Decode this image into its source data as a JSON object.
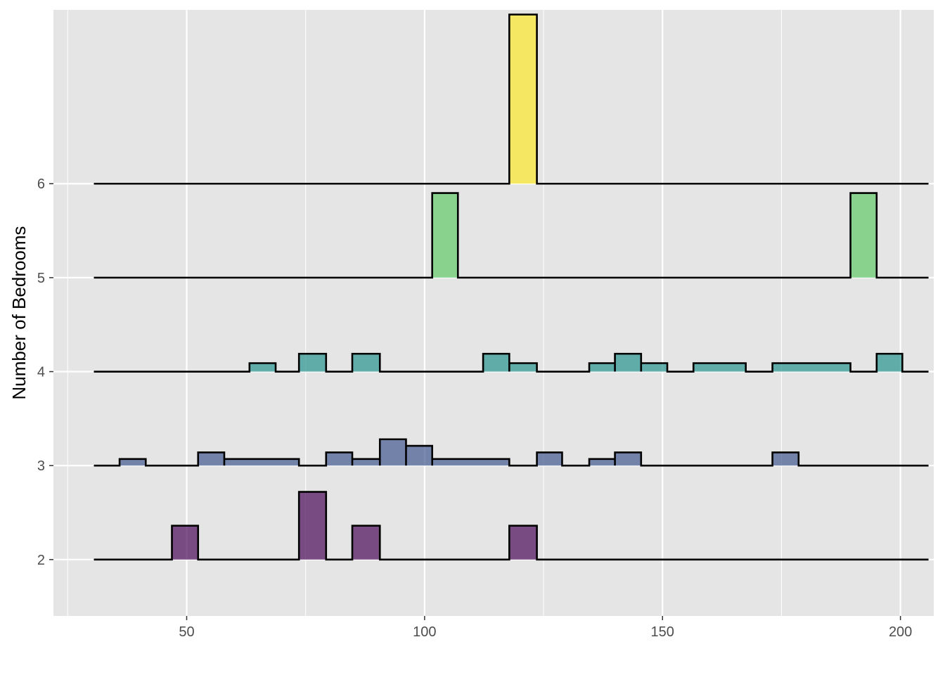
{
  "chart_data": {
    "type": "ridgeline-histogram",
    "title": "",
    "xlabel": "",
    "ylabel": "Number of Bedrooms",
    "xlim": [
      22,
      207
    ],
    "ylim": [
      1.4,
      7.85
    ],
    "x_ticks": [
      50,
      100,
      150,
      200
    ],
    "x_tick_labels": [
      "50",
      "100",
      "150",
      "200"
    ],
    "y_ticks": [
      2,
      3,
      4,
      5,
      6
    ],
    "y_tick_labels": [
      "2",
      "3",
      "4",
      "5",
      "6"
    ],
    "x_range": [
      30.5,
      205.9
    ],
    "bin_width": 5.48,
    "grid": true,
    "background": "#e5e5e5",
    "grid_color": "#ffffff",
    "outline_color": "#000000",
    "series": [
      {
        "baseline": 2,
        "color": "#440154",
        "bins": [
          {
            "x": [
              46.9,
              52.4
            ],
            "height": 0.36
          },
          {
            "x": [
              73.6,
              79.3
            ],
            "height": 0.72
          },
          {
            "x": [
              84.8,
              90.6
            ],
            "height": 0.36
          },
          {
            "x": [
              117.8,
              123.6
            ],
            "height": 0.36
          }
        ]
      },
      {
        "baseline": 3,
        "color": "#3b528b",
        "bins": [
          {
            "x": [
              35.9,
              41.4
            ],
            "height": 0.07
          },
          {
            "x": [
              52.4,
              57.9
            ],
            "height": 0.14
          },
          {
            "x": [
              57.9,
              73.6
            ],
            "height": 0.07
          },
          {
            "x": [
              79.3,
              84.8
            ],
            "height": 0.14
          },
          {
            "x": [
              84.8,
              90.6
            ],
            "height": 0.07
          },
          {
            "x": [
              90.6,
              96.1
            ],
            "height": 0.28
          },
          {
            "x": [
              96.1,
              101.6
            ],
            "height": 0.21
          },
          {
            "x": [
              101.6,
              117.8
            ],
            "height": 0.07
          },
          {
            "x": [
              123.6,
              128.9
            ],
            "height": 0.14
          },
          {
            "x": [
              134.6,
              140.0
            ],
            "height": 0.07
          },
          {
            "x": [
              140.0,
              145.5
            ],
            "height": 0.14
          },
          {
            "x": [
              173.1,
              178.6
            ],
            "height": 0.14
          }
        ]
      },
      {
        "baseline": 4,
        "color": "#21908c",
        "bins": [
          {
            "x": [
              63.2,
              68.7
            ],
            "height": 0.09
          },
          {
            "x": [
              73.6,
              79.3
            ],
            "height": 0.19
          },
          {
            "x": [
              84.8,
              90.6
            ],
            "height": 0.19
          },
          {
            "x": [
              112.3,
              117.8
            ],
            "height": 0.19
          },
          {
            "x": [
              117.8,
              123.6
            ],
            "height": 0.09
          },
          {
            "x": [
              134.6,
              140.0
            ],
            "height": 0.09
          },
          {
            "x": [
              140.0,
              145.5
            ],
            "height": 0.19
          },
          {
            "x": [
              145.5,
              151.0
            ],
            "height": 0.09
          },
          {
            "x": [
              156.5,
              167.5
            ],
            "height": 0.09
          },
          {
            "x": [
              173.1,
              189.5
            ],
            "height": 0.09
          },
          {
            "x": [
              195.0,
              200.4
            ],
            "height": 0.19
          }
        ]
      },
      {
        "baseline": 5,
        "color": "#5dc863",
        "bins": [
          {
            "x": [
              101.6,
              107.0
            ],
            "height": 0.9
          },
          {
            "x": [
              189.5,
              195.0
            ],
            "height": 0.9
          }
        ]
      },
      {
        "baseline": 6,
        "color": "#fde725",
        "bins": [
          {
            "x": [
              117.8,
              123.6
            ],
            "height": 1.8
          }
        ]
      }
    ]
  }
}
